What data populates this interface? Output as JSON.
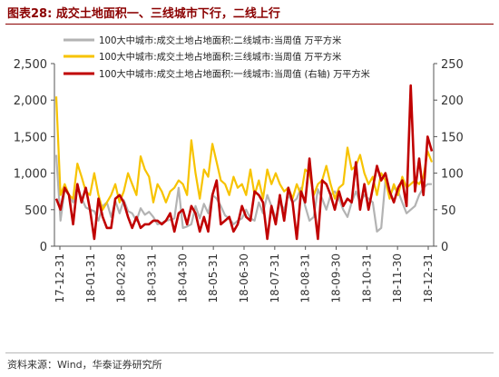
{
  "title": "图表28:  成交土地面积一、三线城市下行，二线上行",
  "source": "资料来源：Wind，华泰证券研究所",
  "chart_data": {
    "type": "line",
    "x_tick_labels": [
      "17-12-31",
      "18-01-31",
      "18-02-28",
      "18-03-31",
      "18-04-30",
      "18-05-31",
      "18-06-30",
      "18-07-31",
      "18-08-31",
      "18-09-30",
      "18-10-31",
      "18-11-30",
      "18-12-31"
    ],
    "y_left": {
      "ticks": [
        "0",
        "500",
        "1,000",
        "1,500",
        "2,000",
        "2,500"
      ],
      "min": 0,
      "max": 2500
    },
    "y_right": {
      "ticks": [
        "0",
        "50",
        "100",
        "150",
        "200",
        "250"
      ],
      "min": 0,
      "max": 250
    },
    "series": [
      {
        "name": "100大中城市:成交土地占地面积:二线城市:当周值  万平方米",
        "color": "#b3b3b3",
        "axis": "left",
        "values": [
          1250,
          350,
          780,
          700,
          600,
          820,
          660,
          530,
          500,
          480,
          350,
          550,
          600,
          400,
          620,
          450,
          630,
          480,
          450,
          350,
          520,
          430,
          470,
          400,
          300,
          320,
          350,
          360,
          380,
          800,
          250,
          270,
          300,
          550,
          380,
          580,
          450,
          700,
          650,
          550,
          420,
          380,
          300,
          350,
          380,
          500,
          380,
          350,
          600,
          450,
          700,
          550,
          380,
          600,
          500,
          700,
          600,
          650,
          800,
          550,
          350,
          400,
          780,
          650,
          500,
          700,
          750,
          650,
          500,
          400,
          600,
          750,
          600,
          700,
          650,
          600,
          200,
          250,
          900,
          700,
          800,
          750,
          600,
          450,
          500,
          550,
          700,
          800,
          850,
          850
        ]
      },
      {
        "name": "100大中城市:成交土地占地面积:三线城市:当周值  万平方米",
        "color": "#f7c300",
        "axis": "left",
        "values": [
          2050,
          700,
          850,
          700,
          650,
          1130,
          950,
          750,
          700,
          1000,
          700,
          500,
          600,
          700,
          850,
          600,
          750,
          1000,
          850,
          700,
          1230,
          1050,
          950,
          600,
          850,
          750,
          600,
          750,
          800,
          900,
          850,
          700,
          1450,
          1000,
          650,
          1050,
          950,
          1400,
          1150,
          900,
          850,
          700,
          950,
          800,
          850,
          700,
          1050,
          700,
          900,
          650,
          1050,
          850,
          1000,
          850,
          750,
          800,
          650,
          850,
          700,
          1050,
          1000,
          700,
          850,
          900,
          1100,
          850,
          650,
          800,
          850,
          1350,
          1050,
          1100,
          1250,
          1000,
          850,
          950,
          700,
          1000,
          900,
          650,
          850,
          700,
          950,
          800,
          850,
          900,
          850,
          950,
          1300,
          1150
        ]
      },
      {
        "name": "100大中城市:成交土地占地面积:一线城市:当周值  (右轴) 万平方米",
        "color": "#c00000",
        "axis": "right",
        "values": [
          65,
          50,
          80,
          70,
          30,
          85,
          60,
          80,
          50,
          10,
          65,
          40,
          25,
          25,
          65,
          70,
          60,
          40,
          25,
          40,
          25,
          30,
          30,
          35,
          35,
          30,
          35,
          45,
          20,
          45,
          50,
          30,
          55,
          45,
          20,
          40,
          20,
          70,
          90,
          30,
          35,
          40,
          20,
          30,
          55,
          40,
          35,
          75,
          70,
          60,
          10,
          55,
          30,
          70,
          35,
          80,
          60,
          10,
          75,
          60,
          120,
          60,
          10,
          90,
          85,
          70,
          50,
          75,
          55,
          65,
          60,
          115,
          50,
          85,
          50,
          80,
          110,
          90,
          100,
          75,
          60,
          80,
          90,
          55,
          220,
          75,
          120,
          70,
          150,
          130
        ]
      }
    ]
  }
}
